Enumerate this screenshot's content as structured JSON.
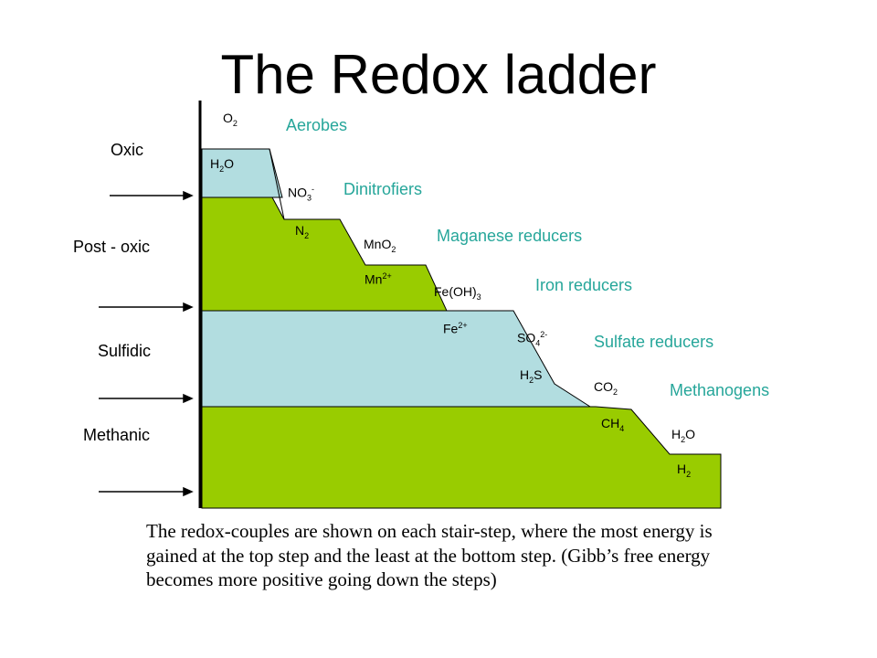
{
  "title": "The Redox ladder",
  "colors": {
    "green": "#99cc00",
    "light_blue": "#b2dde0",
    "teal_text": "#26a69a"
  },
  "zones": [
    "Oxic",
    "Post - oxic",
    "Sulfidic",
    "Methanic"
  ],
  "organisms": [
    "Aerobes",
    "Dinitrofiers",
    "Maganese reducers",
    "Iron reducers",
    "Sulfate reducers",
    "Methanogens"
  ],
  "couples": [
    {
      "oxidant": {
        "base": "O",
        "sub": "2",
        "sup": ""
      },
      "reductant": {
        "base": "H",
        "sub": "2",
        "after": "O",
        "sup": ""
      }
    },
    {
      "oxidant": {
        "base": "NO",
        "sub": "3",
        "sup": "-"
      },
      "reductant": {
        "base": "N",
        "sub": "2",
        "sup": ""
      }
    },
    {
      "oxidant": {
        "base": "MnO",
        "sub": "2",
        "sup": ""
      },
      "reductant": {
        "base": "Mn",
        "sub": "",
        "sup": "2+"
      }
    },
    {
      "oxidant": {
        "base": "Fe(OH)",
        "sub": "3",
        "sup": ""
      },
      "reductant": {
        "base": "Fe",
        "sub": "",
        "sup": "2+"
      }
    },
    {
      "oxidant": {
        "base": "SO",
        "sub": "4",
        "sup": "2-"
      },
      "reductant": {
        "base": "H",
        "sub": "2",
        "after": "S",
        "sup": ""
      }
    },
    {
      "oxidant": {
        "base": "CO",
        "sub": "2",
        "sup": ""
      },
      "reductant": {
        "base": "CH",
        "sub": "4",
        "sup": ""
      }
    },
    {
      "oxidant": {
        "base": "H",
        "sub": "2",
        "after": "O",
        "sup": ""
      },
      "reductant": {
        "base": "H",
        "sub": "2",
        "sup": ""
      }
    }
  ],
  "caption": "The redox-couples are shown on each stair-step, where the most energy is gained at the top step and the least at the bottom step.  (Gibb’s free energy becomes more positive going down the steps)"
}
